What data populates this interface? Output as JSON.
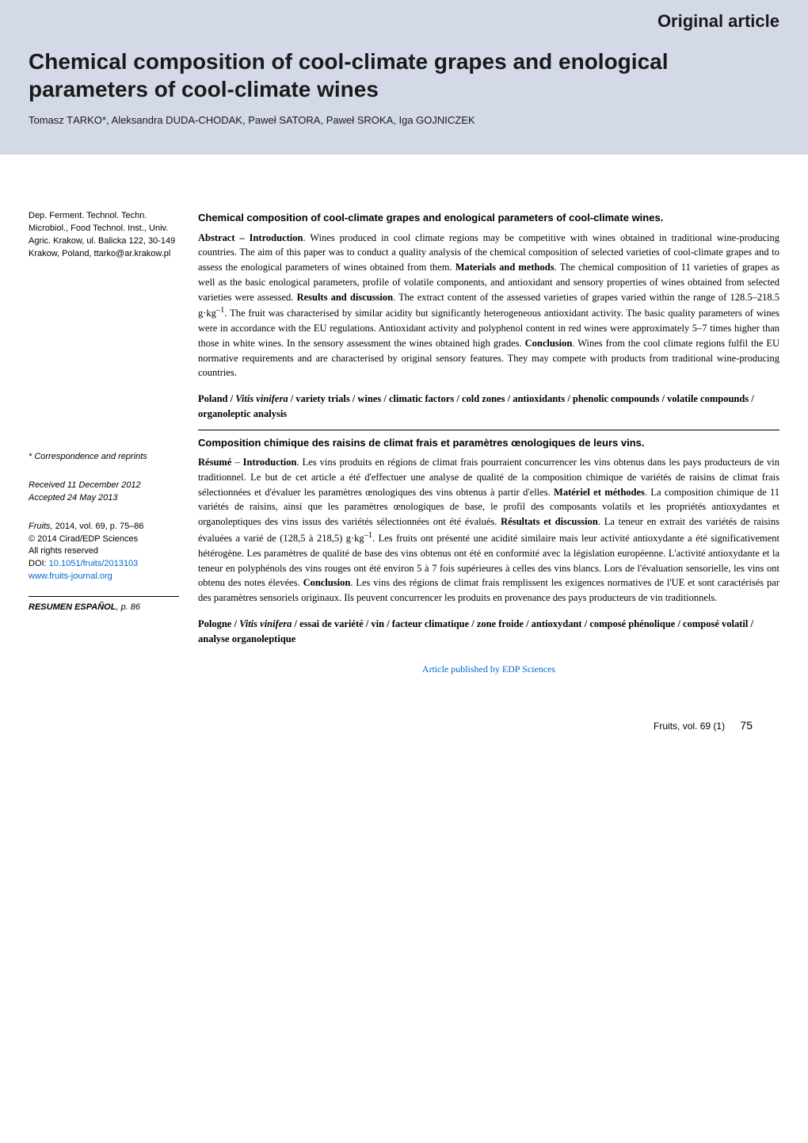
{
  "header": {
    "article_type": "Original article",
    "title": "Chemical composition of cool-climate grapes and enological parameters of cool-climate wines",
    "authors_html": "Tomasz T<span class='sc'>ARKO</span>*, Aleksandra D<span class='sc'>UDA</span>-C<span class='sc'>HODAK</span>, Paweł S<span class='sc'>ATORA</span>, Paweł S<span class='sc'>ROKA</span>, Iga G<span class='sc'>OJNICZEK</span>"
  },
  "sidebar": {
    "affiliation": "Dep. Ferment. Technol. Techn. Microbiol., Food Technol. Inst., Univ. Agric. Krakow, ul. Balicka 122, 30-149 Krakow, Poland, ttarko@ar.krakow.pl",
    "correspondence": "* Correspondence and reprints",
    "received": "Received 11 December 2012",
    "accepted": "Accepted 24 May 2013",
    "citation_journal": "Fruits,",
    "citation_vol": " 2014, vol. 69, p. 75–86",
    "copyright": "© 2014 Cirad/EDP Sciences",
    "rights": "All rights reserved",
    "doi_label": "DOI: ",
    "doi": "10.1051/fruits/2013103",
    "url": "www.fruits-journal.org",
    "resumen_html": "<span class='b i'>R<span class='sc'>ESUMEN</span> E<span class='sc'>SPAÑOL</span></span><span class='i'>, p. 86</span>"
  },
  "english": {
    "heading": "Chemical composition of cool-climate grapes and enological parameters of cool-climate wines.",
    "body_html": "<span class='b'>Abstract – Introduction</span>. Wines produced in cool climate regions may be competitive with wines obtained in traditional wine-producing countries. The aim of this paper was to conduct a quality analysis of the chemical composition of selected varieties of cool-climate grapes and to assess the enological parameters of wines obtained from them. <span class='b'>Materials and methods</span>. The chemical composition of 11 varieties of grapes as well as the basic enological parameters, profile of volatile components, and antioxidant and sensory properties of wines obtained from selected varieties were assessed. <span class='b'>Results and discussion</span>. The extract content of the assessed varieties of grapes varied within the range of 128.5–218.5 g·kg<sup>–1</sup>. The fruit was characterised by similar acidity but significantly heterogeneous antioxidant activity. The basic quality parameters of wines were in accordance with the EU regulations. Antioxidant activity and polyphenol content in red wines were approximately 5–7 times higher than those in white wines. In the sensory assessment the wines obtained high grades. <span class='b'>Conclusion</span>. Wines from the cool climate regions fulfil the EU normative requirements and are characterised by original sensory features. They may compete with products from traditional wine-producing countries.",
    "keywords_html": "Poland / <span class='i'>Vitis vinifera</span> / variety trials / wines / climatic factors / cold zones / antioxidants / phenolic compounds / volatile compounds / organoleptic analysis"
  },
  "french": {
    "heading": "Composition chimique des raisins de climat frais et paramètres œnologiques de leurs vins.",
    "body_html": "<span class='b'>Résumé</span> – <span class='b'>Introduction</span>. Les vins produits en régions de climat frais pourraient concurrencer les vins obtenus dans les pays producteurs de vin traditionnel. Le but de cet article a été d'effectuer une analyse de qualité de la composition chimique de variétés de raisins de climat frais sélectionnées et d'évaluer les paramètres œnologiques des vins obtenus à partir d'elles. <span class='b'>Matériel et méthodes</span>. La composition chimique de 11 variétés de raisins, ainsi que les paramètres œnologiques de base, le profil des composants volatils et les propriétés antioxydantes et organoleptiques des vins issus des variétés sélectionnées ont été évalués. <span class='b'>Résultats et discussion</span>. La teneur en extrait des variétés de raisins évaluées a varié de (128,5 à 218,5) g·kg<sup>–1</sup>. Les fruits ont présenté une acidité similaire mais leur activité antioxydante a été significativement hétérogène. Les paramètres de qualité de base des vins obtenus ont été en conformité avec la législation européenne. L'activité antioxydante et la teneur en polyphénols des vins rouges ont été environ 5 à 7 fois supérieures à celles des vins blancs. Lors de l'évaluation sensorielle, les vins ont obtenu des notes élevées. <span class='b'>Conclusion</span>. Les vins des régions de climat frais remplissent les exigences normatives de l'UE et sont caractérisés par des paramètres sensoriels originaux. Ils peuvent concurrencer les produits en provenance des pays producteurs de vin traditionnels.",
    "keywords_html": "Pologne / <span class='i'>Vitis vinifera</span> / essai de variété / vin / facteur climatique / zone froide / antioxydant / composé phénolique / composé volatil / analyse organoleptique"
  },
  "pub_link": "Article published by EDP Sciences",
  "footer": {
    "journal": "Fruits, vol. 69 (1)",
    "page": "75"
  },
  "colors": {
    "header_bg": "#d4d9e8",
    "link": "#0066cc",
    "text": "#1a1a1a"
  }
}
